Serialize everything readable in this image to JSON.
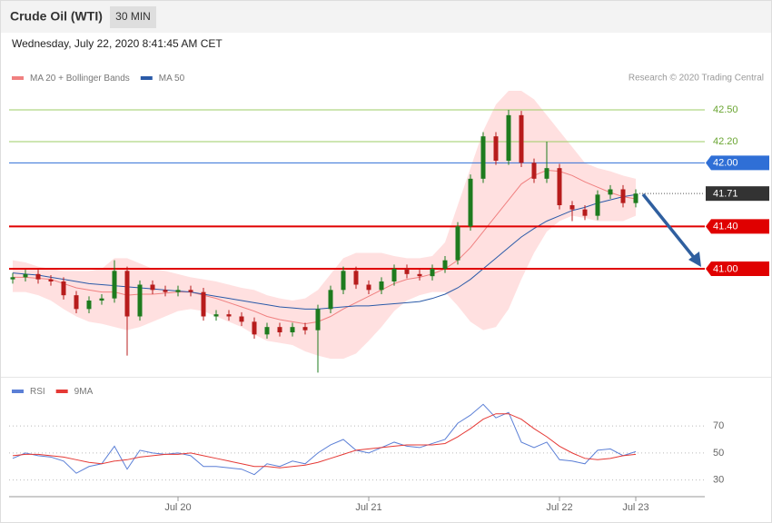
{
  "header": {
    "title": "Crude Oil (WTI)",
    "interval": "30 MIN",
    "timestamp": "Wednesday, July 22, 2020 8:41:45 AM CET",
    "credit": "Research © 2020 Trading Central"
  },
  "chart_data": [
    {
      "type": "candlestick",
      "open": [
        40.9,
        40.92,
        40.95,
        40.9,
        40.88,
        40.75,
        40.62,
        40.7,
        40.72,
        40.98,
        40.55,
        40.85,
        40.8,
        40.78,
        40.8,
        40.78,
        40.55,
        40.57,
        40.55,
        40.5,
        40.38,
        40.45,
        40.4,
        40.45,
        40.42,
        40.62,
        40.8,
        40.98,
        40.85,
        40.8,
        40.88,
        41.0,
        40.95,
        40.93,
        41.0,
        41.08,
        41.4,
        41.85,
        42.25,
        42.02,
        42.45,
        42.0,
        41.85,
        41.95,
        41.6,
        41.56,
        41.5,
        41.7,
        41.75,
        41.62
      ],
      "high": [
        40.96,
        40.99,
        40.99,
        40.94,
        40.92,
        40.79,
        40.74,
        40.76,
        41.08,
        41.02,
        40.89,
        40.89,
        40.84,
        40.84,
        40.84,
        40.82,
        40.61,
        40.61,
        40.59,
        40.54,
        40.49,
        40.49,
        40.49,
        40.49,
        40.66,
        40.84,
        41.02,
        41.02,
        40.89,
        40.92,
        41.04,
        41.04,
        40.99,
        41.04,
        41.12,
        41.44,
        41.89,
        42.29,
        42.29,
        42.5,
        42.49,
        42.04,
        42.2,
        41.99,
        41.64,
        41.6,
        41.74,
        41.79,
        41.79,
        41.75
      ],
      "low": [
        40.86,
        40.88,
        40.86,
        40.84,
        40.71,
        40.58,
        40.58,
        40.66,
        40.68,
        40.18,
        40.51,
        40.76,
        40.74,
        40.74,
        40.74,
        40.51,
        40.51,
        40.51,
        40.46,
        40.34,
        40.34,
        40.36,
        40.36,
        40.38,
        40.02,
        40.58,
        40.76,
        40.81,
        40.76,
        40.76,
        40.84,
        40.91,
        40.89,
        40.89,
        40.96,
        41.04,
        41.36,
        41.81,
        41.98,
        41.98,
        41.96,
        41.81,
        41.81,
        41.56,
        41.45,
        41.46,
        41.46,
        41.66,
        41.58,
        41.58
      ],
      "close": [
        40.92,
        40.95,
        40.9,
        40.88,
        40.75,
        40.62,
        40.7,
        40.72,
        40.98,
        40.55,
        40.85,
        40.8,
        40.78,
        40.8,
        40.78,
        40.55,
        40.57,
        40.55,
        40.5,
        40.38,
        40.45,
        40.4,
        40.45,
        40.42,
        40.62,
        40.8,
        40.98,
        40.85,
        40.8,
        40.88,
        41.0,
        40.95,
        40.93,
        41.0,
        41.08,
        41.4,
        41.85,
        42.25,
        42.02,
        42.45,
        42.0,
        41.85,
        41.95,
        41.6,
        41.56,
        41.5,
        41.7,
        41.75,
        41.62,
        41.71
      ],
      "up_color": "#1e7b1e",
      "down_color": "#b71c1c",
      "ylim": [
        39.98,
        42.68
      ],
      "series": [
        {
          "name": "MA 20 + Bollinger Bands",
          "color": "#f08080",
          "band_color": "#ffd6d6",
          "values": [
            40.92,
            40.92,
            40.91,
            40.9,
            40.86,
            40.82,
            40.8,
            40.78,
            40.78,
            40.75,
            40.76,
            40.76,
            40.77,
            40.78,
            40.78,
            40.75,
            40.72,
            40.68,
            40.64,
            40.6,
            40.55,
            40.52,
            40.5,
            40.48,
            40.5,
            40.55,
            40.62,
            40.68,
            40.74,
            40.8,
            40.86,
            40.9,
            40.92,
            40.95,
            41.0,
            41.08,
            41.2,
            41.35,
            41.5,
            41.65,
            41.8,
            41.88,
            41.93,
            41.92,
            41.88,
            41.82,
            41.77,
            41.72,
            41.68,
            41.66
          ],
          "upper": [
            41.08,
            41.06,
            41.02,
            41.0,
            40.98,
            40.98,
            40.98,
            41.0,
            41.1,
            41.1,
            41.05,
            41.0,
            40.98,
            40.95,
            40.92,
            40.9,
            40.88,
            40.85,
            40.82,
            40.8,
            40.75,
            40.72,
            40.7,
            40.72,
            40.8,
            40.95,
            41.1,
            41.15,
            41.15,
            41.15,
            41.12,
            41.1,
            41.1,
            41.12,
            41.25,
            41.6,
            41.95,
            42.3,
            42.55,
            42.68,
            42.68,
            42.6,
            42.45,
            42.3,
            42.15,
            42.0,
            41.95,
            41.92,
            41.88,
            41.85
          ],
          "lower": [
            40.78,
            40.78,
            40.75,
            40.7,
            40.62,
            40.55,
            40.5,
            40.48,
            40.45,
            40.42,
            40.45,
            40.5,
            40.55,
            40.6,
            40.62,
            40.6,
            40.55,
            40.5,
            40.45,
            40.38,
            40.32,
            40.3,
            40.28,
            40.22,
            40.18,
            40.15,
            40.15,
            40.2,
            40.32,
            40.45,
            40.6,
            40.7,
            40.75,
            40.78,
            40.78,
            40.65,
            40.5,
            40.42,
            40.45,
            40.62,
            40.9,
            41.15,
            41.35,
            41.45,
            41.5,
            41.48,
            41.45,
            41.45,
            41.45,
            41.5
          ]
        },
        {
          "name": "MA 50",
          "color": "#2a5aa8",
          "values": [
            40.96,
            40.95,
            40.94,
            40.92,
            40.9,
            40.88,
            40.86,
            40.85,
            40.84,
            40.83,
            40.82,
            40.81,
            40.8,
            40.79,
            40.78,
            40.76,
            40.74,
            40.72,
            40.7,
            40.68,
            40.66,
            40.64,
            40.63,
            40.62,
            40.62,
            40.63,
            40.64,
            40.65,
            40.65,
            40.66,
            40.67,
            40.68,
            40.69,
            40.72,
            40.76,
            40.82,
            40.9,
            41.0,
            41.1,
            41.2,
            41.3,
            41.38,
            41.45,
            41.5,
            41.55,
            41.58,
            41.62,
            41.65,
            41.68,
            41.7
          ]
        }
      ],
      "levels": [
        {
          "value": 42.5,
          "label": "42.50",
          "color": "#9ccc65",
          "box": false
        },
        {
          "value": 42.2,
          "label": "42.20",
          "color": "#9ccc65",
          "box": false
        },
        {
          "value": 42.0,
          "label": "42.00",
          "color": "#2f6fd6",
          "box": true
        },
        {
          "value": 41.4,
          "label": "41.40",
          "color": "#e00000",
          "box": true
        },
        {
          "value": 41.0,
          "label": "41.00",
          "color": "#e00000",
          "box": true
        }
      ],
      "last": {
        "value": 41.71,
        "label": "41.71",
        "color": "#333333"
      }
    },
    {
      "type": "line",
      "categories": [
        null,
        null,
        null,
        null,
        null,
        null,
        null,
        null,
        null,
        null,
        null,
        null,
        null,
        "Jul 20",
        null,
        null,
        null,
        null,
        null,
        null,
        null,
        null,
        null,
        null,
        null,
        null,
        null,
        null,
        "Jul 21",
        null,
        null,
        null,
        null,
        null,
        null,
        null,
        null,
        null,
        null,
        null,
        null,
        null,
        null,
        "Jul 22",
        null,
        null,
        null,
        null,
        null,
        "Jul 23"
      ],
      "ylim": [
        19,
        103
      ],
      "yticks": [
        30,
        50,
        70
      ],
      "grid": true,
      "series": [
        {
          "name": "RSI",
          "color": "#5b7fd6",
          "values": [
            46,
            50,
            48,
            47,
            44,
            35,
            40,
            42,
            55,
            38,
            52,
            50,
            49,
            50,
            48,
            40,
            40,
            39,
            38,
            34,
            42,
            40,
            44,
            42,
            50,
            56,
            60,
            52,
            50,
            54,
            58,
            55,
            54,
            57,
            60,
            72,
            78,
            86,
            76,
            80,
            58,
            54,
            58,
            45,
            44,
            42,
            52,
            53,
            48,
            51
          ]
        },
        {
          "name": "9MA",
          "color": "#e53935",
          "values": [
            48,
            49,
            49,
            48,
            47,
            45,
            43,
            42,
            44,
            45,
            47,
            48,
            49,
            49,
            50,
            48,
            46,
            44,
            42,
            40,
            40,
            39,
            40,
            41,
            43,
            46,
            49,
            52,
            53,
            54,
            55,
            56,
            56,
            56,
            57,
            62,
            68,
            75,
            79,
            79,
            75,
            68,
            62,
            55,
            50,
            46,
            45,
            46,
            48,
            49
          ]
        }
      ]
    }
  ]
}
